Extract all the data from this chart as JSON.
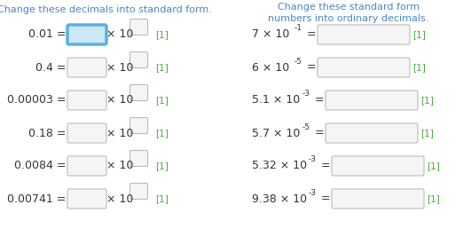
{
  "title_left": "Change these decimals into standard form.",
  "title_right": "Change these standard form\nnumbers into ordinary decimals.",
  "title_color": "#4a86c8",
  "bg_color": "#ffffff",
  "left_decimals": [
    "0.01",
    "0.4",
    "0.00003",
    "0.18",
    "0.0084",
    "0.00741"
  ],
  "right_expressions": [
    {
      "coeff": "7",
      "exp": "-1"
    },
    {
      "coeff": "6",
      "exp": "-5"
    },
    {
      "coeff": "5.1",
      "exp": "-3"
    },
    {
      "coeff": "5.7",
      "exp": "-5"
    },
    {
      "coeff": "5.32",
      "exp": "-3"
    },
    {
      "coeff": "9.38",
      "exp": "-3"
    }
  ],
  "mark_color": "#4aaa44",
  "text_color": "#333333",
  "highlight_box_edge": "#5aafe0",
  "highlight_box_face": "#cde8f8",
  "normal_box_edge": "#bbbbbb",
  "normal_box_face": "#f5f5f5",
  "figsize": [
    5.31,
    2.84
  ],
  "dpi": 100,
  "xlim": [
    0,
    531
  ],
  "ylim": [
    0,
    284
  ]
}
